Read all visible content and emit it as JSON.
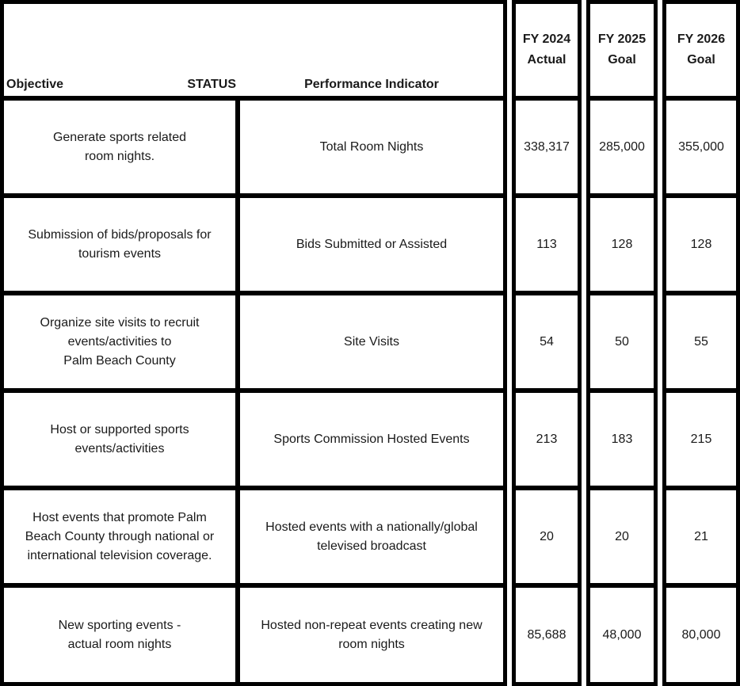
{
  "header": {
    "objective_label": "Objective",
    "status_label": "STATUS",
    "indicator_label": "Performance Indicator",
    "fy_columns": [
      {
        "line1": "FY 2024",
        "line2": "Actual"
      },
      {
        "line1": "FY 2025",
        "line2": "Goal"
      },
      {
        "line1": "FY 2026",
        "line2": "Goal"
      }
    ]
  },
  "rows": [
    {
      "objective": "Generate sports related\nroom nights.",
      "indicator": "Total Room Nights",
      "fy2024_actual": "338,317",
      "fy2025_goal": "285,000",
      "fy2026_goal": "355,000"
    },
    {
      "objective": "Submission of bids/proposals for\ntourism events",
      "indicator": "Bids Submitted or Assisted",
      "fy2024_actual": "113",
      "fy2025_goal": "128",
      "fy2026_goal": "128"
    },
    {
      "objective": "Organize site visits to recruit\nevents/activities to\nPalm Beach County",
      "indicator": "Site Visits",
      "fy2024_actual": "54",
      "fy2025_goal": "50",
      "fy2026_goal": "55"
    },
    {
      "objective": "Host or supported sports\nevents/activities",
      "indicator": "Sports Commission Hosted Events",
      "fy2024_actual": "213",
      "fy2025_goal": "183",
      "fy2026_goal": "215"
    },
    {
      "objective": "Host events that promote Palm\nBeach County through national or\ninternational television coverage.",
      "indicator": "Hosted events with a nationally/global\ntelevised broadcast",
      "fy2024_actual": "20",
      "fy2025_goal": "20",
      "fy2026_goal": "21"
    },
    {
      "objective": "New sporting events -\nactual room nights",
      "indicator": "Hosted non-repeat events creating new\nroom nights",
      "fy2024_actual": "85,688",
      "fy2025_goal": "48,000",
      "fy2026_goal": "80,000"
    }
  ],
  "colors": {
    "border": "#000000",
    "background": "#ffffff",
    "text": "#1a1a1a"
  }
}
